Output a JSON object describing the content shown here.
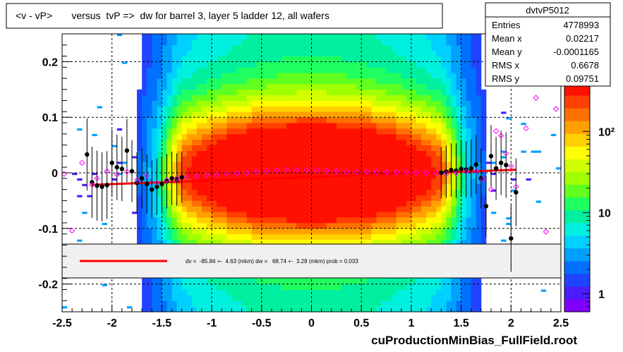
{
  "title": "<v - vP>       versus  tvP =>  dw for barrel 3, layer 5 ladder 12, all wafers",
  "footer": "cuProductionMinBias_FullField.root",
  "stats": {
    "name": "dvtvP5012",
    "rows": [
      {
        "label": "Entries",
        "value": "4778993"
      },
      {
        "label": "Mean x",
        "value": "0.02217"
      },
      {
        "label": "Mean y",
        "value": "-0.0001165"
      },
      {
        "label": "RMS x",
        "value": "0.6678"
      },
      {
        "label": "RMS y",
        "value": "0.09751"
      }
    ]
  },
  "legend": {
    "fit_text": "dv =  -85.84 +-  4.63 (mkm) dw =   68.74 +-  3.28 (mkm) prob = 0.033"
  },
  "colors": {
    "fit_line": "#ff0000",
    "profile_marker": "#ff00ff",
    "dots": "#000000",
    "legend_bg": "#f0f0f0"
  },
  "chart_data": {
    "type": "heatmap",
    "xlim": [
      -2.5,
      2.5
    ],
    "ylim": [
      -0.25,
      0.25
    ],
    "x_ticks": [
      "-2.5",
      "-2",
      "-1.5",
      "-1",
      "-0.5",
      "0",
      "0.5",
      "1",
      "1.5",
      "2",
      "2.5"
    ],
    "x_tick_values": [
      -2.5,
      -2,
      -1.5,
      -1,
      -0.5,
      0,
      0.5,
      1,
      1.5,
      2,
      2.5
    ],
    "y_ticks": [
      "-0.2",
      "-0.1",
      "0",
      "0.1",
      "0.2"
    ],
    "y_tick_values": [
      -0.2,
      -0.1,
      0,
      0.1,
      0.2
    ],
    "grid": true,
    "z_scale": "log",
    "colorbar_ticks": [
      "1",
      "10",
      "10²"
    ],
    "colorbar_tick_values": [
      1,
      10,
      100
    ],
    "colorbar_range": [
      0.6,
      400
    ],
    "fit_line": {
      "x": [
        -2.2,
        2.05
      ],
      "y": [
        -0.0215,
        0.0055
      ]
    },
    "profile_points": [
      {
        "x": -2.48,
        "y": -0.002
      },
      {
        "x": -2.4,
        "y": -0.104
      },
      {
        "x": -2.3,
        "y": 0.018
      },
      {
        "x": -2.2,
        "y": -0.022
      },
      {
        "x": -2.15,
        "y": -0.01
      },
      {
        "x": -2.05,
        "y": 0.003
      },
      {
        "x": -1.95,
        "y": -0.003
      },
      {
        "x": -1.85,
        "y": 0.002
      },
      {
        "x": -1.75,
        "y": -0.013
      },
      {
        "x": -1.65,
        "y": -0.005
      },
      {
        "x": -1.55,
        "y": -0.018
      },
      {
        "x": -1.45,
        "y": -0.013
      },
      {
        "x": -1.35,
        "y": -0.01
      },
      {
        "x": -1.25,
        "y": -0.008
      },
      {
        "x": -1.15,
        "y": -0.006
      },
      {
        "x": -1.05,
        "y": -0.004
      },
      {
        "x": -0.95,
        "y": -0.003
      },
      {
        "x": -0.85,
        "y": -0.002
      },
      {
        "x": -0.75,
        "y": -0.001
      },
      {
        "x": -0.65,
        "y": 0.0
      },
      {
        "x": -0.55,
        "y": 0.002
      },
      {
        "x": -0.45,
        "y": 0.003
      },
      {
        "x": -0.35,
        "y": 0.004
      },
      {
        "x": -0.25,
        "y": 0.005
      },
      {
        "x": -0.15,
        "y": 0.005
      },
      {
        "x": -0.05,
        "y": 0.005
      },
      {
        "x": 0.05,
        "y": 0.005
      },
      {
        "x": 0.15,
        "y": 0.004
      },
      {
        "x": 0.25,
        "y": 0.003
      },
      {
        "x": 0.35,
        "y": 0.002
      },
      {
        "x": 0.45,
        "y": 0.002
      },
      {
        "x": 0.55,
        "y": 0.002
      },
      {
        "x": 0.65,
        "y": 0.002
      },
      {
        "x": 0.75,
        "y": 0.001
      },
      {
        "x": 0.85,
        "y": 0.001
      },
      {
        "x": 0.95,
        "y": 0.001
      },
      {
        "x": 1.05,
        "y": 0.0
      },
      {
        "x": 1.15,
        "y": 0.0
      },
      {
        "x": 1.25,
        "y": -0.001
      },
      {
        "x": 1.35,
        "y": -0.002
      },
      {
        "x": 1.45,
        "y": -0.001
      },
      {
        "x": 1.55,
        "y": 0.002
      },
      {
        "x": 1.65,
        "y": 0.003
      },
      {
        "x": 1.72,
        "y": -0.012
      },
      {
        "x": 1.8,
        "y": -0.03
      },
      {
        "x": 1.85,
        "y": 0.075
      },
      {
        "x": 1.9,
        "y": 0.067
      },
      {
        "x": 1.95,
        "y": 0.035
      },
      {
        "x": 2.0,
        "y": 0.012
      },
      {
        "x": 2.05,
        "y": -0.025
      },
      {
        "x": 2.15,
        "y": 0.08
      },
      {
        "x": 2.25,
        "y": 0.135
      },
      {
        "x": 2.35,
        "y": -0.106
      },
      {
        "x": 2.45,
        "y": 0.115
      }
    ],
    "black_points": [
      {
        "x": -2.25,
        "y": 0.033
      },
      {
        "x": -2.2,
        "y": -0.017
      },
      {
        "x": -2.15,
        "y": -0.023
      },
      {
        "x": -2.1,
        "y": -0.025
      },
      {
        "x": -2.05,
        "y": -0.022
      },
      {
        "x": -2.0,
        "y": 0.018
      },
      {
        "x": -1.95,
        "y": 0.01
      },
      {
        "x": -1.9,
        "y": 0.007
      },
      {
        "x": -1.85,
        "y": 0.04
      },
      {
        "x": -1.8,
        "y": 0.003
      },
      {
        "x": -1.75,
        "y": -0.018
      },
      {
        "x": -1.7,
        "y": -0.01
      },
      {
        "x": -1.65,
        "y": -0.02
      },
      {
        "x": -1.6,
        "y": -0.03
      },
      {
        "x": -1.55,
        "y": -0.025
      },
      {
        "x": -1.5,
        "y": -0.02
      },
      {
        "x": -1.45,
        "y": -0.015
      },
      {
        "x": -1.4,
        "y": -0.01
      },
      {
        "x": -1.35,
        "y": -0.012
      },
      {
        "x": -1.3,
        "y": -0.008
      },
      {
        "x": 1.3,
        "y": 0.0
      },
      {
        "x": 1.35,
        "y": 0.002
      },
      {
        "x": 1.4,
        "y": 0.005
      },
      {
        "x": 1.45,
        "y": 0.004
      },
      {
        "x": 1.5,
        "y": 0.007
      },
      {
        "x": 1.55,
        "y": 0.006
      },
      {
        "x": 1.6,
        "y": 0.008
      },
      {
        "x": 1.65,
        "y": 0.015
      },
      {
        "x": 1.7,
        "y": -0.01
      },
      {
        "x": 1.75,
        "y": -0.06
      },
      {
        "x": 1.8,
        "y": 0.03
      },
      {
        "x": 1.85,
        "y": 0.008
      },
      {
        "x": 1.9,
        "y": 0.018
      },
      {
        "x": 1.95,
        "y": 0.014
      },
      {
        "x": 2.0,
        "y": -0.118
      },
      {
        "x": 2.05,
        "y": -0.035
      }
    ]
  }
}
